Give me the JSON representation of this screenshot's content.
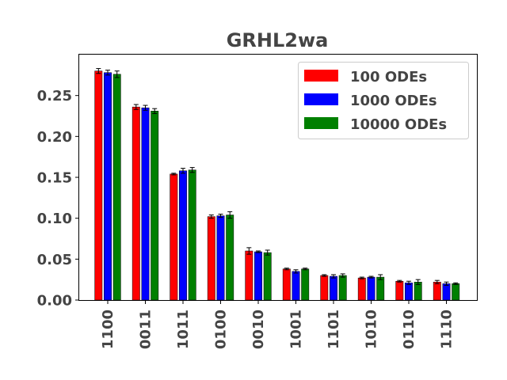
{
  "chart_data": {
    "type": "bar",
    "title": "GRHL2wa",
    "xlabel": "",
    "ylabel": "",
    "ylim": [
      0,
      0.3
    ],
    "yticks": [
      "0.00",
      "0.05",
      "0.10",
      "0.15",
      "0.20",
      "0.25"
    ],
    "categories": [
      "1100",
      "0011",
      "1011",
      "0100",
      "0010",
      "1001",
      "1101",
      "1010",
      "0110",
      "1110"
    ],
    "legend_position": "top-right",
    "grid": false,
    "series": [
      {
        "name": "100 ODEs",
        "color": "#ff0000",
        "values": [
          0.28,
          0.236,
          0.154,
          0.102,
          0.06,
          0.038,
          0.03,
          0.027,
          0.023,
          0.022
        ],
        "errors": [
          0.003,
          0.003,
          0.001,
          0.002,
          0.004,
          0.001,
          0.001,
          0.001,
          0.001,
          0.002
        ]
      },
      {
        "name": "1000 ODEs",
        "color": "#0000ff",
        "values": [
          0.278,
          0.235,
          0.158,
          0.103,
          0.059,
          0.035,
          0.029,
          0.028,
          0.021,
          0.02
        ],
        "errors": [
          0.003,
          0.003,
          0.003,
          0.002,
          0.001,
          0.002,
          0.002,
          0.001,
          0.002,
          0.002
        ]
      },
      {
        "name": "10000 ODEs",
        "color": "#008000",
        "values": [
          0.276,
          0.231,
          0.159,
          0.104,
          0.058,
          0.038,
          0.03,
          0.028,
          0.022,
          0.02
        ],
        "errors": [
          0.004,
          0.003,
          0.003,
          0.004,
          0.003,
          0.001,
          0.002,
          0.003,
          0.003,
          0.001
        ]
      }
    ]
  }
}
